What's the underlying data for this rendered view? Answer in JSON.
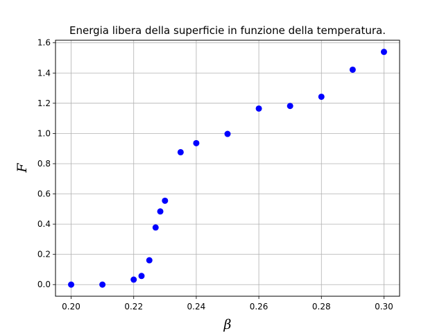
{
  "chart_data": {
    "type": "scatter",
    "title": "Energia libera della superficie in funzione della temperatura.",
    "xlabel": "β",
    "ylabel": "F",
    "xlim": [
      0.195,
      0.305
    ],
    "ylim": [
      -0.077,
      1.617
    ],
    "xticks": [
      0.2,
      0.22,
      0.24,
      0.26,
      0.28,
      0.3
    ],
    "xtick_labels": [
      "0.20",
      "0.22",
      "0.24",
      "0.26",
      "0.28",
      "0.30"
    ],
    "yticks": [
      0.0,
      0.2,
      0.4,
      0.6,
      0.8,
      1.0,
      1.2,
      1.4,
      1.6
    ],
    "ytick_labels": [
      "0.0",
      "0.2",
      "0.4",
      "0.6",
      "0.8",
      "1.0",
      "1.2",
      "1.4",
      "1.6"
    ],
    "grid": true,
    "marker_color": "#0000ff",
    "points": [
      {
        "x": 0.2,
        "y": 0.0
      },
      {
        "x": 0.21,
        "y": 0.0
      },
      {
        "x": 0.22,
        "y": 0.033
      },
      {
        "x": 0.2225,
        "y": 0.057
      },
      {
        "x": 0.225,
        "y": 0.161
      },
      {
        "x": 0.227,
        "y": 0.378
      },
      {
        "x": 0.2285,
        "y": 0.484
      },
      {
        "x": 0.23,
        "y": 0.555
      },
      {
        "x": 0.235,
        "y": 0.876
      },
      {
        "x": 0.24,
        "y": 0.936
      },
      {
        "x": 0.25,
        "y": 0.997
      },
      {
        "x": 0.26,
        "y": 1.165
      },
      {
        "x": 0.27,
        "y": 1.182
      },
      {
        "x": 0.28,
        "y": 1.243
      },
      {
        "x": 0.29,
        "y": 1.422
      },
      {
        "x": 0.3,
        "y": 1.54
      }
    ]
  }
}
